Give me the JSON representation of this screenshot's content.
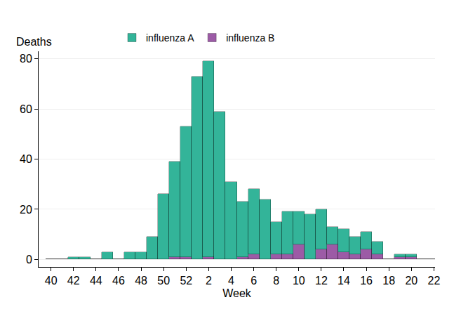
{
  "chart_data": {
    "type": "bar",
    "stacked": true,
    "x_label": "Week",
    "y_label": "Deaths",
    "categories": [
      40,
      null,
      42,
      null,
      44,
      null,
      46,
      null,
      48,
      null,
      50,
      null,
      52,
      null,
      2,
      null,
      4,
      null,
      6,
      null,
      8,
      null,
      10,
      null,
      12,
      null,
      14,
      null,
      16,
      null,
      18,
      null,
      20,
      null,
      22
    ],
    "series": [
      {
        "name": "influenza A",
        "color": "#33b499",
        "values": [
          0,
          0,
          1,
          1,
          0,
          3,
          0,
          3,
          3,
          9,
          26,
          38,
          52,
          73,
          78,
          59,
          31,
          22,
          26,
          24,
          13,
          17,
          13,
          18,
          16,
          7,
          9,
          7,
          7,
          5,
          0,
          1,
          1,
          0,
          0
        ]
      },
      {
        "name": "influenza B",
        "color": "#9c5ba6",
        "values": [
          0,
          0,
          0,
          0,
          0,
          0,
          0,
          0,
          0,
          0,
          0,
          1,
          1,
          0,
          1,
          0,
          0,
          1,
          2,
          0,
          2,
          2,
          6,
          0,
          4,
          6,
          3,
          2,
          4,
          2,
          0,
          1,
          1,
          0,
          0
        ]
      }
    ],
    "ylim": [
      -3,
      83
    ],
    "yticks": [
      0,
      20,
      40,
      60,
      80
    ],
    "grid": true,
    "legend": "top"
  }
}
